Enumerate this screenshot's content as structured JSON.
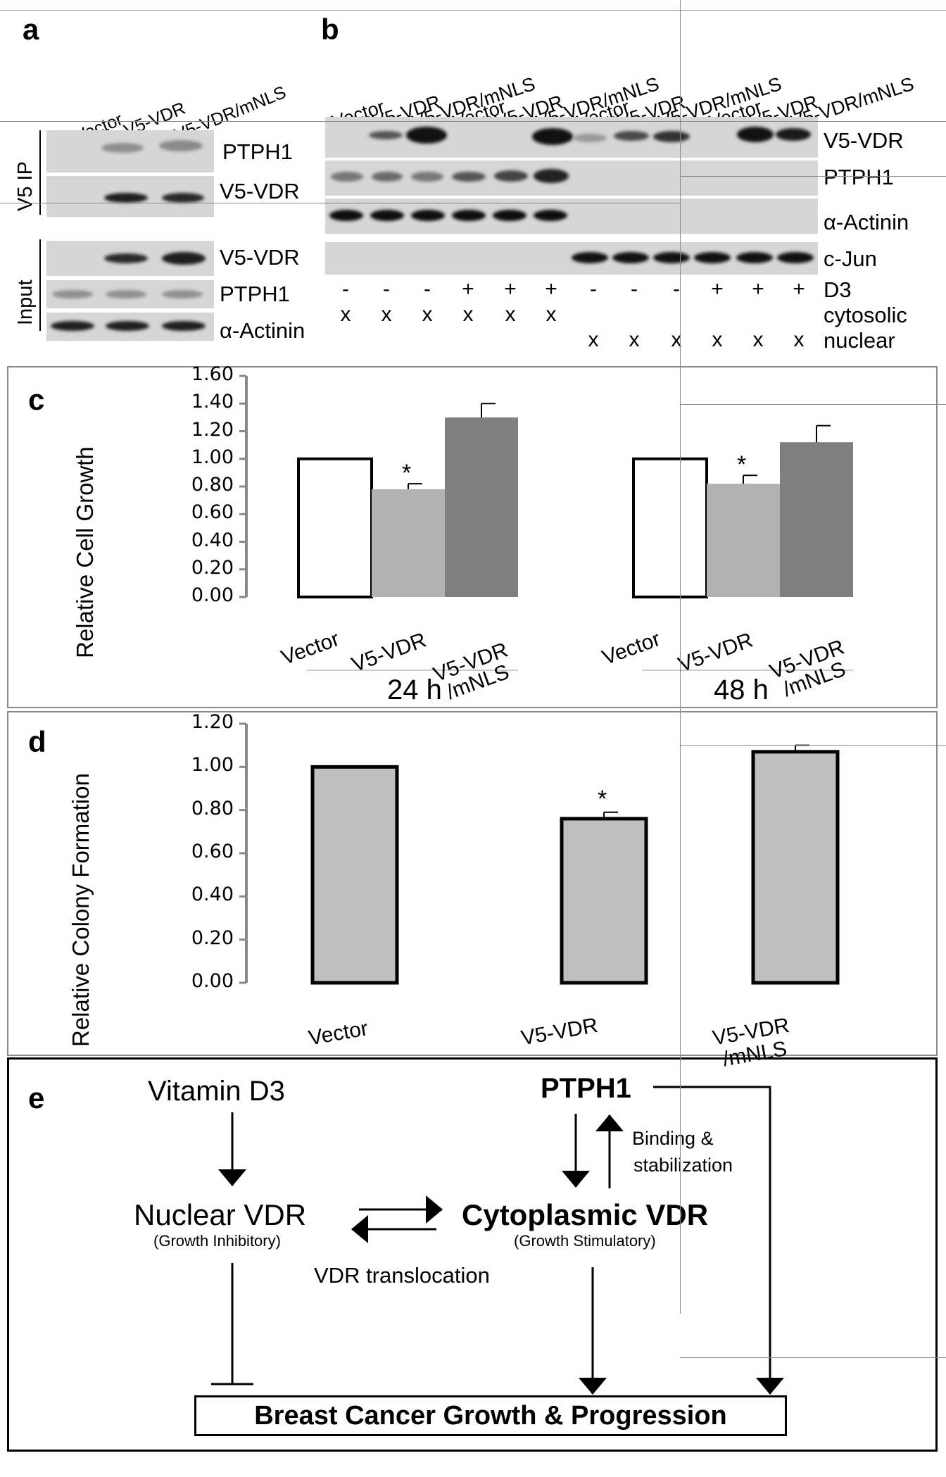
{
  "panel_a": {
    "letter": "a",
    "lanes": [
      "Vector",
      "V5-VDR",
      "V5-VDR/mNLS"
    ],
    "ip_label": "V5 IP",
    "input_label": "Input",
    "ip_blots": [
      "PTPH1",
      "V5-VDR"
    ],
    "input_blots": [
      "V5-VDR",
      "PTPH1",
      "α-Actinin"
    ]
  },
  "panel_b": {
    "letter": "b",
    "lanes": [
      "Vector",
      "V5-VDR",
      "V5-VDR/mNLS",
      "Vector",
      "V5-VDR",
      "V5-VDR/mNLS",
      "Vector",
      "V5-VDR",
      "V5-VDR/mNLS",
      "Vector",
      "V5-VDR",
      "V5-VDR/mNLS"
    ],
    "blots": [
      "V5-VDR",
      "PTPH1",
      "α-Actinin",
      "c-Jun"
    ],
    "d3_label": "D3",
    "d3_row": [
      "-",
      "-",
      "-",
      "+",
      "+",
      "+",
      "-",
      "-",
      "-",
      "+",
      "+",
      "+"
    ],
    "cytosolic_label": "cytosolic",
    "cytosolic_row": [
      "x",
      "x",
      "x",
      "x",
      "x",
      "x",
      "",
      "",
      "",
      "",
      "",
      ""
    ],
    "nuclear_label": "nuclear",
    "nuclear_row": [
      "",
      "",
      "",
      "",
      "",
      "",
      "x",
      "x",
      "x",
      "x",
      "x",
      "x"
    ]
  },
  "panel_c": {
    "letter": "c",
    "ylabel": "Relative Cell Growth",
    "yticks": [
      "1.60",
      "1.40",
      "1.20",
      "1.00",
      "0.80",
      "0.60",
      "0.40",
      "0.20",
      "0.00"
    ],
    "categories": [
      "Vector",
      "V5-VDR",
      "V5-VDR\n/mNLS"
    ],
    "groups": [
      "24 h",
      "48 h"
    ]
  },
  "panel_d": {
    "letter": "d",
    "ylabel": "Relative Colony Formation",
    "yticks": [
      "1.20",
      "1.00",
      "0.80",
      "0.60",
      "0.40",
      "0.20",
      "0.00"
    ],
    "categories": [
      "Vector",
      "V5-VDR",
      "V5-VDR\n/mNLS"
    ]
  },
  "panel_e": {
    "letter": "e",
    "vitamin": "Vitamin D3",
    "ptph1": "PTPH1",
    "binding": "Binding &",
    "stabilization": "stabilization",
    "nuclear_vdr": "Nuclear VDR",
    "nuclear_note": "(Growth Inhibitory)",
    "cyto_vdr": "Cytoplasmic VDR",
    "cyto_note": "(Growth Stimulatory)",
    "translocation": "VDR translocation",
    "outcome": "Breast Cancer Growth & Progression"
  },
  "chart_data": [
    {
      "type": "bar",
      "panel": "c",
      "ylabel": "Relative Cell Growth",
      "ylim": [
        0,
        1.6
      ],
      "groups": [
        "24 h",
        "48 h"
      ],
      "categories": [
        "Vector",
        "V5-VDR",
        "V5-VDR /mNLS"
      ],
      "series": [
        {
          "group": "24 h",
          "values": [
            1.0,
            0.78,
            1.3
          ],
          "errors": [
            0,
            0.04,
            0.1
          ],
          "significant": [
            false,
            true,
            false
          ]
        },
        {
          "group": "48 h",
          "values": [
            1.0,
            0.82,
            1.12
          ],
          "errors": [
            0,
            0.06,
            0.12
          ],
          "significant": [
            false,
            true,
            false
          ]
        }
      ],
      "colors": [
        "#ffffff",
        "#b2b2b2",
        "#7f7f7f"
      ]
    },
    {
      "type": "bar",
      "panel": "d",
      "ylabel": "Relative Colony Formation",
      "ylim": [
        0,
        1.2
      ],
      "categories": [
        "Vector",
        "V5-VDR",
        "V5-VDR /mNLS"
      ],
      "values": [
        1.0,
        0.76,
        1.07
      ],
      "errors": [
        0,
        0.03,
        0.03
      ],
      "significant": [
        false,
        true,
        false
      ],
      "colors": [
        "#bfbfbf",
        "#bfbfbf",
        "#bfbfbf"
      ]
    }
  ]
}
